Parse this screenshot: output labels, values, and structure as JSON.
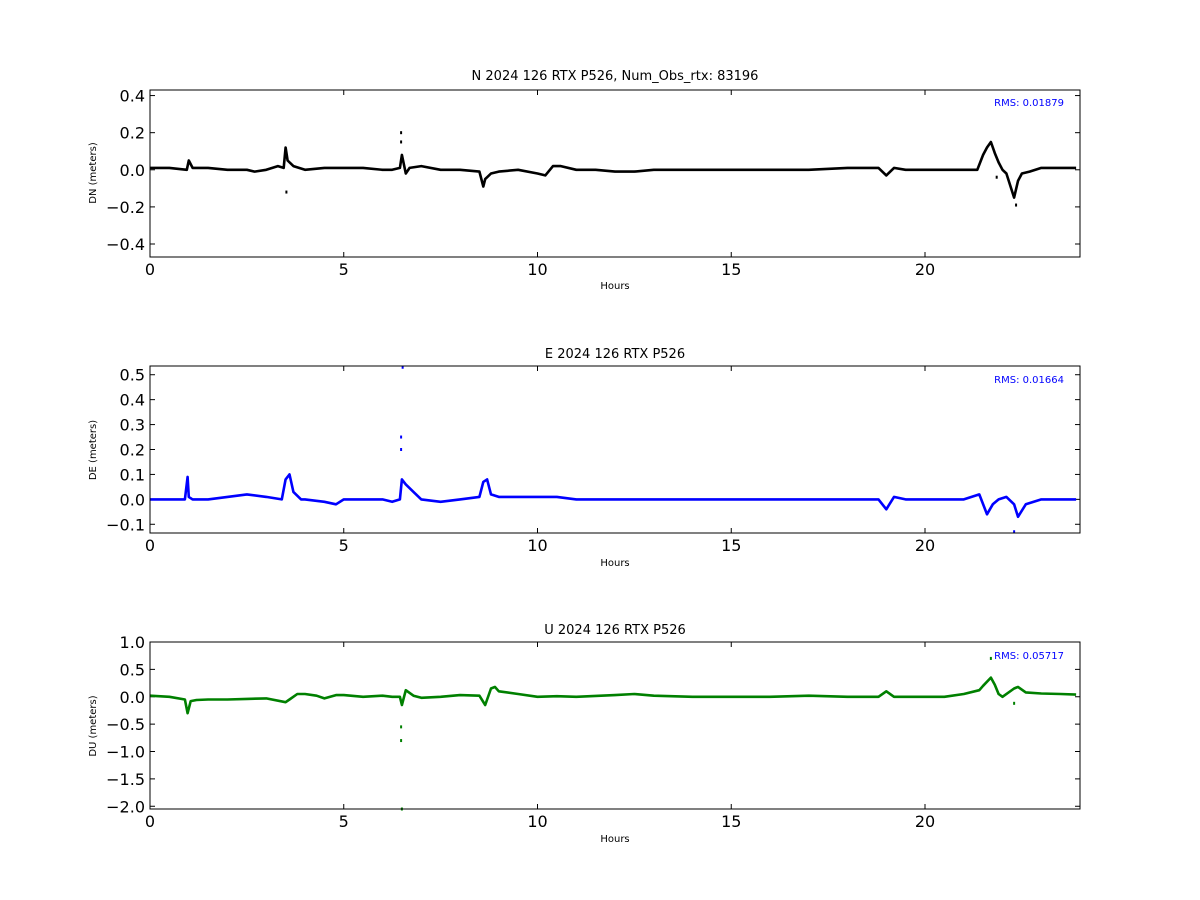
{
  "chart_data": [
    {
      "type": "line",
      "title": "N 2024 126 RTX  P526, Num_Obs_rtx: 83196",
      "xlabel": "Hours",
      "ylabel": "DN (meters)",
      "xlim": [
        0,
        24
      ],
      "ylim": [
        -0.47,
        0.43
      ],
      "xticks": [
        0,
        5,
        10,
        15,
        20
      ],
      "xtick_labels": [
        "0",
        "5",
        "10",
        "15",
        "20"
      ],
      "yticks": [
        -0.4,
        -0.2,
        0.0,
        0.2,
        0.4
      ],
      "ytick_labels": [
        "−0.4",
        "−0.2",
        "0.0",
        "0.2",
        "0.4"
      ],
      "annotation": "RMS:  0.01879",
      "annotation_color": "#0000ff",
      "color": "#000000",
      "grid": false,
      "series": [
        {
          "x": [
            0,
            0.5,
            0.95,
            1.0,
            1.1,
            1.5,
            2.0,
            2.5,
            2.7,
            3.0,
            3.3,
            3.45,
            3.5,
            3.55,
            3.7,
            4.0,
            4.5,
            5.0,
            5.5,
            6.0,
            6.25,
            6.45,
            6.5,
            6.6,
            6.7,
            7.0,
            7.5,
            8.0,
            8.5,
            8.6,
            8.65,
            8.8,
            9.0,
            9.5,
            10.0,
            10.2,
            10.4,
            10.6,
            11.0,
            11.5,
            12.0,
            12.5,
            13.0,
            13.5,
            14.0,
            15.0,
            16.0,
            17.0,
            18.0,
            18.8,
            19.0,
            19.2,
            19.5,
            20.0,
            20.5,
            21.0,
            21.35,
            21.5,
            21.6,
            21.7,
            21.8,
            21.9,
            22.0,
            22.1,
            22.3,
            22.4,
            22.5,
            22.7,
            23.0,
            23.5,
            23.9
          ],
          "y": [
            0.01,
            0.01,
            0.0,
            0.05,
            0.01,
            0.01,
            0.0,
            0.0,
            -0.01,
            0.0,
            0.02,
            0.01,
            0.12,
            0.05,
            0.02,
            0.0,
            0.01,
            0.01,
            0.01,
            0.0,
            0.0,
            0.01,
            0.08,
            -0.02,
            0.01,
            0.02,
            0.0,
            0.0,
            -0.01,
            -0.09,
            -0.05,
            -0.02,
            -0.01,
            0.0,
            -0.02,
            -0.03,
            0.02,
            0.02,
            0.0,
            0.0,
            -0.01,
            -0.01,
            0.0,
            0.0,
            0.0,
            0.0,
            0.0,
            0.0,
            0.01,
            0.01,
            -0.03,
            0.01,
            0.0,
            0.0,
            0.0,
            0.0,
            0.0,
            0.08,
            0.12,
            0.15,
            0.09,
            0.04,
            0.0,
            -0.02,
            -0.15,
            -0.06,
            -0.02,
            -0.01,
            0.01,
            0.01,
            0.01
          ]
        }
      ],
      "outliers": [
        {
          "x": 3.52,
          "y": -0.12
        },
        {
          "x": 6.48,
          "y": 0.2
        },
        {
          "x": 6.48,
          "y": 0.15
        },
        {
          "x": 21.85,
          "y": -0.04
        },
        {
          "x": 22.35,
          "y": -0.19
        }
      ]
    },
    {
      "type": "line",
      "title": "E 2024 126 RTX  P526",
      "xlabel": "Hours",
      "ylabel": "DE (meters)",
      "xlim": [
        0,
        24
      ],
      "ylim": [
        -0.135,
        0.535
      ],
      "xticks": [
        0,
        5,
        10,
        15,
        20
      ],
      "xtick_labels": [
        "0",
        "5",
        "10",
        "15",
        "20"
      ],
      "yticks": [
        -0.1,
        0.0,
        0.1,
        0.2,
        0.3,
        0.4,
        0.5
      ],
      "ytick_labels": [
        "−0.1",
        "0.0",
        "0.1",
        "0.2",
        "0.3",
        "0.4",
        "0.5"
      ],
      "annotation": "RMS:  0.01664",
      "annotation_color": "#0000ff",
      "color": "#0000ff",
      "grid": false,
      "series": [
        {
          "x": [
            0,
            0.5,
            0.9,
            0.97,
            1.0,
            1.1,
            1.5,
            2.0,
            2.5,
            3.0,
            3.4,
            3.5,
            3.6,
            3.7,
            3.9,
            4.0,
            4.5,
            4.8,
            5.0,
            5.5,
            6.0,
            6.25,
            6.45,
            6.5,
            6.6,
            6.8,
            7.0,
            7.5,
            8.0,
            8.5,
            8.6,
            8.7,
            8.8,
            9.0,
            9.5,
            10.0,
            10.5,
            11.0,
            12.0,
            13.0,
            14.0,
            15.0,
            16.0,
            17.0,
            18.0,
            18.8,
            19.0,
            19.2,
            19.5,
            20.0,
            20.5,
            21.0,
            21.4,
            21.6,
            21.75,
            21.9,
            22.1,
            22.3,
            22.4,
            22.6,
            23.0,
            23.5,
            23.9
          ],
          "y": [
            0.0,
            0.0,
            0.0,
            0.09,
            0.01,
            0.0,
            0.0,
            0.01,
            0.02,
            0.01,
            0.0,
            0.08,
            0.1,
            0.03,
            0.0,
            0.0,
            -0.01,
            -0.02,
            0.0,
            0.0,
            0.0,
            -0.01,
            0.0,
            0.08,
            0.06,
            0.03,
            0.0,
            -0.01,
            0.0,
            0.01,
            0.07,
            0.08,
            0.02,
            0.01,
            0.01,
            0.01,
            0.01,
            0.0,
            0.0,
            0.0,
            0.0,
            0.0,
            0.0,
            0.0,
            0.0,
            0.0,
            -0.04,
            0.01,
            0.0,
            0.0,
            0.0,
            0.0,
            0.02,
            -0.06,
            -0.02,
            0.0,
            0.01,
            -0.02,
            -0.07,
            -0.02,
            0.0,
            0.0,
            0.0
          ]
        }
      ],
      "outliers": [
        {
          "x": 6.48,
          "y": 0.25
        },
        {
          "x": 6.48,
          "y": 0.2
        },
        {
          "x": 6.52,
          "y": 0.53
        },
        {
          "x": 22.3,
          "y": -0.13
        }
      ]
    },
    {
      "type": "line",
      "title": "U 2024 126 RTX  P526",
      "xlabel": "Hours",
      "ylabel": "DU (meters)",
      "xlim": [
        0,
        24
      ],
      "ylim": [
        -2.05,
        1.0
      ],
      "xticks": [
        0,
        5,
        10,
        15,
        20
      ],
      "xtick_labels": [
        "0",
        "5",
        "10",
        "15",
        "20"
      ],
      "yticks": [
        -2.0,
        -1.5,
        -1.0,
        -0.5,
        0.0,
        0.5,
        1.0
      ],
      "ytick_labels": [
        "−2.0",
        "−1.5",
        "−1.0",
        "−0.5",
        "0.0",
        "0.5",
        "1.0"
      ],
      "annotation": "RMS:  0.05717",
      "annotation_color": "#0000ff",
      "color": "#008000",
      "grid": false,
      "series": [
        {
          "x": [
            0,
            0.5,
            0.9,
            0.97,
            1.05,
            1.2,
            1.5,
            2.0,
            2.5,
            3.0,
            3.5,
            3.6,
            3.8,
            4.0,
            4.3,
            4.5,
            4.8,
            5.0,
            5.5,
            6.0,
            6.25,
            6.45,
            6.5,
            6.6,
            6.8,
            7.0,
            7.5,
            8.0,
            8.5,
            8.65,
            8.8,
            8.9,
            9.0,
            9.5,
            10.0,
            10.5,
            11.0,
            12.0,
            12.5,
            13.0,
            14.0,
            15.0,
            16.0,
            17.0,
            18.0,
            18.8,
            19.0,
            19.2,
            19.5,
            20.0,
            20.5,
            21.0,
            21.4,
            21.5,
            21.7,
            21.8,
            21.9,
            22.0,
            22.3,
            22.4,
            22.6,
            23.0,
            23.5,
            23.9
          ],
          "y": [
            0.02,
            0.0,
            -0.05,
            -0.3,
            -0.08,
            -0.06,
            -0.05,
            -0.05,
            -0.04,
            -0.03,
            -0.1,
            -0.05,
            0.05,
            0.05,
            0.02,
            -0.03,
            0.03,
            0.03,
            0.0,
            0.02,
            0.0,
            0.0,
            -0.15,
            0.12,
            0.02,
            -0.02,
            0.0,
            0.03,
            0.02,
            -0.15,
            0.15,
            0.18,
            0.1,
            0.05,
            0.0,
            0.01,
            0.0,
            0.03,
            0.05,
            0.02,
            0.0,
            0.0,
            0.0,
            0.02,
            0.0,
            0.0,
            0.1,
            0.0,
            0.0,
            0.0,
            0.0,
            0.05,
            0.12,
            0.2,
            0.35,
            0.22,
            0.05,
            0.0,
            0.15,
            0.18,
            0.08,
            0.06,
            0.05,
            0.04
          ]
        }
      ],
      "outliers": [
        {
          "x": 6.48,
          "y": -0.8
        },
        {
          "x": 6.48,
          "y": -0.55
        },
        {
          "x": 21.7,
          "y": 0.7
        },
        {
          "x": 22.3,
          "y": -0.12
        },
        {
          "x": 6.5,
          "y": -2.05
        }
      ]
    }
  ]
}
